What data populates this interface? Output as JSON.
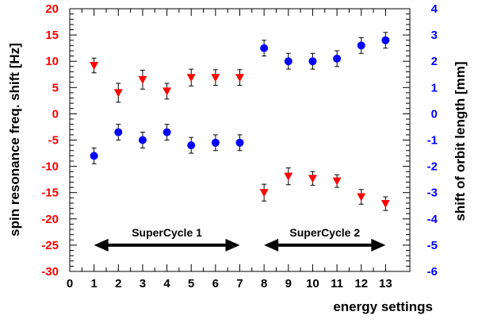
{
  "chart_data": {
    "type": "scatter",
    "xlabel": "energy settings",
    "ylabel_left": "spin resonance freq. shift [Hz]",
    "ylabel_right": "shift of orbit length [mm]",
    "xlim": [
      0,
      14
    ],
    "ylim_left": [
      -30,
      20
    ],
    "ylim_right": [
      -6,
      4
    ],
    "x_ticks": [
      "0",
      "1",
      "2",
      "3",
      "4",
      "5",
      "6",
      "7",
      "8",
      "9",
      "10",
      "11",
      "12",
      "13"
    ],
    "y_ticks_left": [
      "20",
      "15",
      "10",
      "5",
      "0",
      "-5",
      "-10",
      "-15",
      "-20",
      "-25",
      "-30"
    ],
    "y_ticks_right": [
      "4",
      "3",
      "2",
      "1",
      "0",
      "-1",
      "-2",
      "-3",
      "-4",
      "-5",
      "-6"
    ],
    "colors": {
      "left_axis": "#ff0000",
      "right_axis": "#0000ff",
      "frame": "#000000"
    },
    "series": [
      {
        "axis": "left",
        "marker": "triangle-down",
        "color": "#ff0000",
        "x": [
          1,
          2,
          3,
          4,
          5,
          6,
          7,
          8,
          9,
          10,
          11,
          12,
          13
        ],
        "y": [
          9.2,
          4.0,
          6.5,
          4.3,
          6.9,
          6.9,
          6.9,
          -15.0,
          -11.9,
          -12.3,
          -12.8,
          -15.8,
          -17.1
        ],
        "err": [
          1.4,
          1.8,
          1.8,
          1.5,
          1.6,
          1.5,
          1.5,
          1.6,
          1.6,
          1.3,
          1.2,
          1.4,
          1.3
        ]
      },
      {
        "axis": "right",
        "marker": "circle",
        "color": "#0000ff",
        "x": [
          1,
          2,
          3,
          4,
          5,
          6,
          7,
          8,
          9,
          10,
          11,
          12,
          13
        ],
        "y": [
          -1.6,
          -0.7,
          -1.0,
          -0.7,
          -1.2,
          -1.1,
          -1.1,
          2.5,
          2.0,
          2.0,
          2.1,
          2.6,
          2.8
        ],
        "err": [
          0.3,
          0.3,
          0.3,
          0.3,
          0.3,
          0.3,
          0.3,
          0.3,
          0.3,
          0.3,
          0.3,
          0.3,
          0.3
        ]
      }
    ],
    "annotations": [
      {
        "label": "SuperCycle 1",
        "x_from": 1,
        "x_to": 7,
        "y": -25
      },
      {
        "label": "SuperCycle 2",
        "x_from": 8,
        "x_to": 13,
        "y": -25
      }
    ]
  }
}
